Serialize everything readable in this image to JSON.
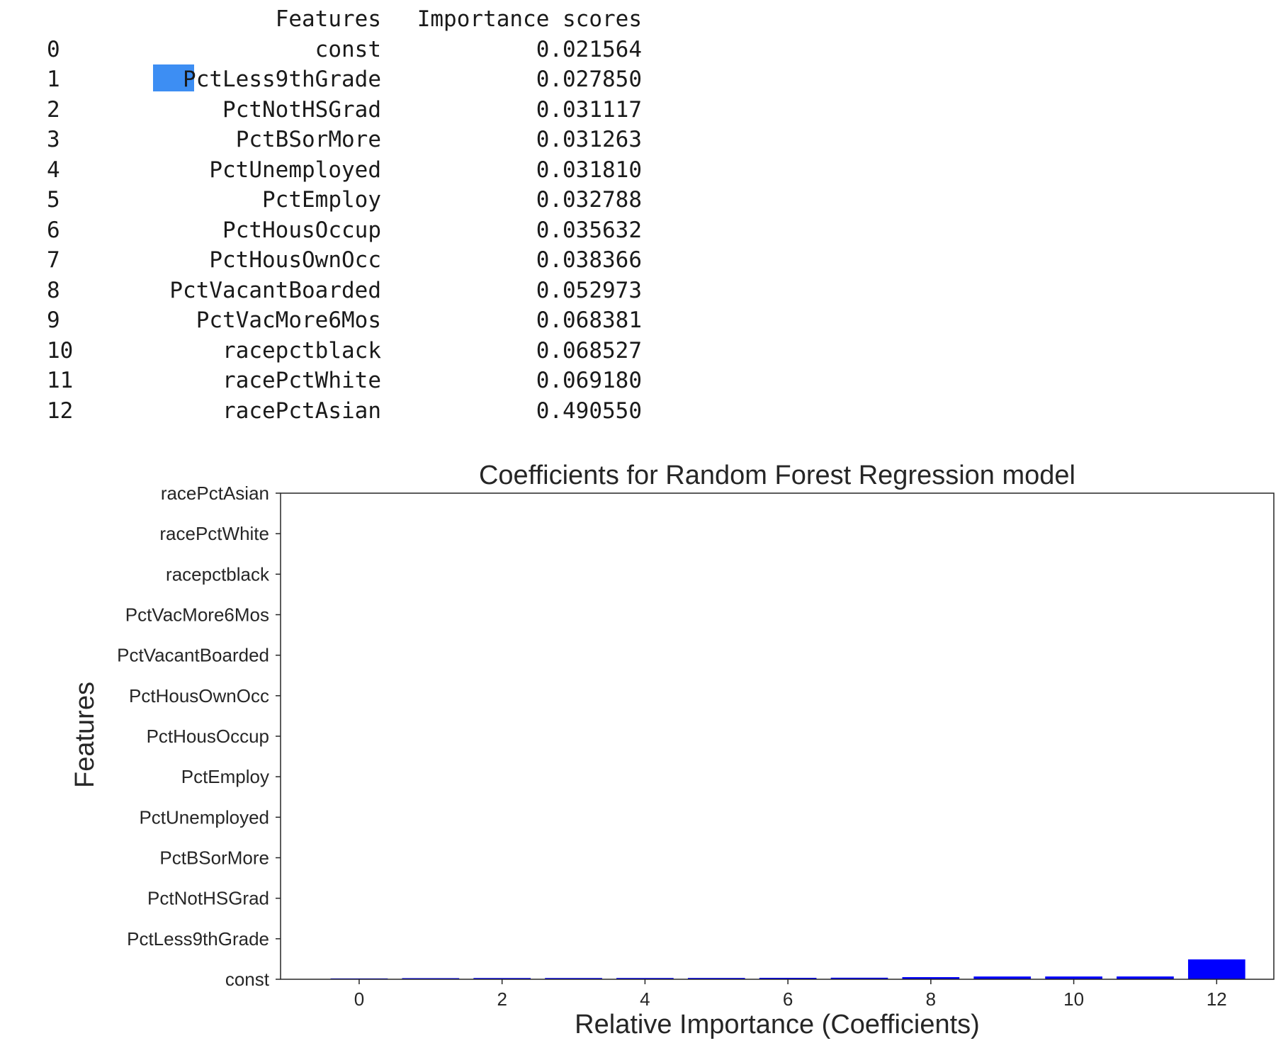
{
  "table": {
    "headers": [
      "",
      "Features",
      "Importance scores"
    ],
    "rows": [
      {
        "index": "0",
        "feature": "const",
        "score": "0.021564"
      },
      {
        "index": "1",
        "feature": "PctLess9thGrade",
        "score": "0.027850"
      },
      {
        "index": "2",
        "feature": "PctNotHSGrad",
        "score": "0.031117"
      },
      {
        "index": "3",
        "feature": "PctBSorMore",
        "score": "0.031263"
      },
      {
        "index": "4",
        "feature": "PctUnemployed",
        "score": "0.031810"
      },
      {
        "index": "5",
        "feature": "PctEmploy",
        "score": "0.032788"
      },
      {
        "index": "6",
        "feature": "PctHousOccup",
        "score": "0.035632"
      },
      {
        "index": "7",
        "feature": "PctHousOwnOcc",
        "score": "0.038366"
      },
      {
        "index": "8",
        "feature": "PctVacantBoarded",
        "score": "0.052973"
      },
      {
        "index": "9",
        "feature": "PctVacMore6Mos",
        "score": "0.068381"
      },
      {
        "index": "10",
        "feature": "racepctblack",
        "score": "0.068527"
      },
      {
        "index": "11",
        "feature": "racePctWhite",
        "score": "0.069180"
      },
      {
        "index": "12",
        "feature": "racePctAsian",
        "score": "0.490550"
      }
    ]
  },
  "chart_data": {
    "type": "bar",
    "title": "Coefficients for Random Forest Regression model",
    "xlabel": "Relative Importance (Coefficients)",
    "ylabel": "Features",
    "x": [
      0,
      1,
      2,
      3,
      4,
      5,
      6,
      7,
      8,
      9,
      10,
      11,
      12
    ],
    "values": [
      0.021564,
      0.02785,
      0.031117,
      0.031263,
      0.03181,
      0.032788,
      0.035632,
      0.038366,
      0.052973,
      0.068381,
      0.068527,
      0.06918,
      0.49055
    ],
    "xlim": [
      -1.1,
      12.8
    ],
    "xticks": [
      0,
      2,
      4,
      6,
      8,
      10,
      12
    ],
    "yticklabels": [
      "const",
      "PctLess9thGrade",
      "PctNotHSGrad",
      "PctBSorMore",
      "PctUnemployed",
      "PctEmploy",
      "PctHousOccup",
      "PctHousOwnOcc",
      "PctVacantBoarded",
      "PctVacMore6Mos",
      "racepctblack",
      "racePctWhite",
      "racePctAsian"
    ],
    "yticks": [
      0,
      1,
      2,
      3,
      4,
      5,
      6,
      7,
      8,
      9,
      10,
      11,
      12
    ],
    "ylim": [
      0,
      12
    ],
    "bar_color": "#0000ff",
    "highlight_color": "#3d8ef3",
    "grid": false
  }
}
